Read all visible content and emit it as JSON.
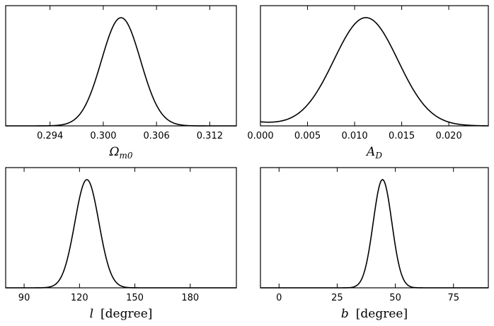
{
  "chart_data": [
    {
      "type": "line",
      "title": "",
      "xlabel_parts": {
        "symbol": "Ω",
        "subscript": "m0",
        "unit": ""
      },
      "xlim": [
        0.289,
        0.315
      ],
      "xticks": [
        0.294,
        0.3,
        0.306,
        0.312
      ],
      "xtick_labels": [
        "0.294",
        "0.300",
        "0.306",
        "0.312"
      ],
      "ylabel": "",
      "show_y_ticks": false,
      "curve": {
        "shape": "gaussian",
        "peak_x": 0.302,
        "sigma": 0.0022,
        "peak_y": 0.9
      },
      "grid": false
    },
    {
      "type": "line",
      "title": "",
      "xlabel_parts": {
        "symbol": "A",
        "subscript": "D",
        "unit": ""
      },
      "xlim": [
        0.0,
        0.0242
      ],
      "xticks": [
        0.0,
        0.005,
        0.01,
        0.015,
        0.02
      ],
      "xtick_labels": [
        "0.000",
        "0.005",
        "0.010",
        "0.015",
        "0.020"
      ],
      "ylabel": "",
      "show_y_ticks": false,
      "curve": {
        "shape": "gaussian",
        "peak_x": 0.0112,
        "sigma": 0.0034,
        "peak_y": 0.9,
        "floor_at_zero": 0.03
      },
      "grid": false
    },
    {
      "type": "line",
      "title": "",
      "xlabel_parts": {
        "symbol": "l",
        "subscript": "",
        "unit": "[degree]"
      },
      "xlim": [
        80,
        205
      ],
      "xticks": [
        90,
        120,
        150,
        180
      ],
      "xtick_labels": [
        "90",
        "120",
        "150",
        "180"
      ],
      "ylabel": "",
      "show_y_ticks": false,
      "curve": {
        "shape": "gaussian",
        "peak_x": 124,
        "sigma": 6.5,
        "peak_y": 0.9
      },
      "grid": false
    },
    {
      "type": "line",
      "title": "",
      "xlabel_parts": {
        "symbol": "b",
        "subscript": "",
        "unit": "[degree]"
      },
      "xlim": [
        -8,
        90
      ],
      "xticks": [
        0,
        25,
        50,
        75
      ],
      "xtick_labels": [
        "0",
        "25",
        "50",
        "75"
      ],
      "ylabel": "",
      "show_y_ticks": false,
      "curve": {
        "shape": "gaussian",
        "peak_x": 44.5,
        "sigma": 4.0,
        "peak_y": 0.9
      },
      "grid": false
    }
  ]
}
